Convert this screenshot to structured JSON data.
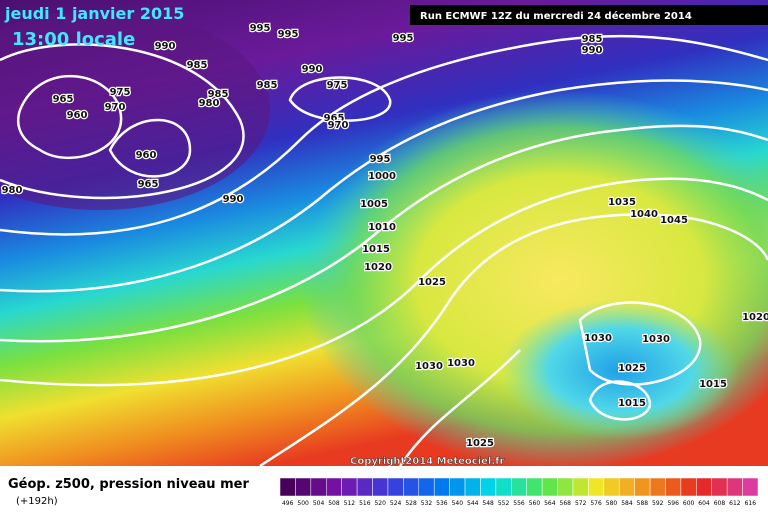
{
  "header": {
    "date": "jeudi 1 janvier 2015",
    "time": "13:00 locale",
    "run": "Run ECMWF 12Z du mercredi 24 décembre 2014"
  },
  "map": {
    "isobar_labels": [
      "995",
      "995",
      "990",
      "995",
      "985",
      "990",
      "985",
      "990",
      "975",
      "985",
      "985",
      "975",
      "965",
      "970",
      "980",
      "960",
      "965",
      "970",
      "960",
      "995",
      "1000",
      "965",
      "980",
      "990",
      "1005",
      "1035",
      "1040",
      "1045",
      "1010",
      "1015",
      "1020",
      "1025",
      "1020",
      "1030",
      "1030",
      "1030",
      "1030",
      "1025",
      "1015",
      "1015",
      "1025"
    ],
    "copyright": "Copyright2014 Meteociel.fr"
  },
  "footer": {
    "title": "Géop. z500, pression niveau mer",
    "lead": "(+192h)"
  },
  "legend": {
    "labels": [
      "496",
      "500",
      "504",
      "508",
      "512",
      "516",
      "520",
      "524",
      "528",
      "532",
      "536",
      "540",
      "544",
      "548",
      "552",
      "556",
      "560",
      "564",
      "568",
      "572",
      "576",
      "580",
      "584",
      "588",
      "592",
      "596",
      "600",
      "604",
      "608",
      "612",
      "616"
    ]
  }
}
